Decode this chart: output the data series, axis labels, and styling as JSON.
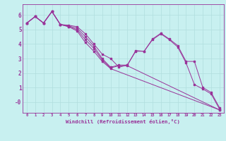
{
  "xlabel": "Windchill (Refroidissement éolien,°C)",
  "bg_color": "#c8f0f0",
  "line_color": "#993399",
  "grid_color": "#b0dede",
  "xlim": [
    -0.5,
    23.5
  ],
  "ylim": [
    -0.75,
    6.75
  ],
  "xticks": [
    0,
    1,
    2,
    3,
    4,
    5,
    6,
    7,
    8,
    9,
    10,
    11,
    12,
    13,
    14,
    15,
    16,
    17,
    18,
    19,
    20,
    21,
    22,
    23
  ],
  "yticks": [
    0,
    1,
    2,
    3,
    4,
    5,
    6
  ],
  "ytick_labels": [
    "-0",
    "1",
    "2",
    "3",
    "4",
    "5",
    "6"
  ],
  "lines": [
    {
      "x": [
        0,
        1,
        2,
        3,
        4,
        5,
        6,
        7,
        8,
        9,
        10,
        11,
        12,
        13,
        14,
        15,
        16,
        17,
        18,
        19,
        20,
        21,
        22,
        23
      ],
      "y": [
        5.45,
        5.9,
        5.45,
        6.25,
        5.35,
        5.3,
        5.2,
        4.7,
        4.0,
        3.3,
        3.0,
        2.4,
        2.55,
        3.55,
        3.5,
        4.35,
        4.75,
        4.35,
        3.9,
        2.8,
        2.8,
        1.0,
        0.65,
        -0.4
      ]
    },
    {
      "x": [
        0,
        1,
        2,
        3,
        4,
        5,
        6,
        7,
        8,
        9,
        10,
        11,
        12,
        13,
        14,
        15,
        16,
        17,
        18,
        19,
        20,
        21,
        22,
        23
      ],
      "y": [
        5.45,
        5.9,
        5.45,
        6.25,
        5.35,
        5.25,
        5.1,
        4.5,
        3.85,
        3.0,
        2.4,
        2.55,
        2.55,
        3.5,
        3.5,
        4.3,
        4.7,
        4.3,
        3.8,
        2.7,
        1.2,
        0.9,
        0.55,
        -0.5
      ]
    },
    {
      "x": [
        0,
        1,
        2,
        3,
        4,
        5,
        6,
        7,
        8,
        9,
        10,
        11,
        12,
        23
      ],
      "y": [
        5.45,
        5.9,
        5.45,
        6.25,
        5.35,
        5.2,
        5.0,
        4.3,
        3.7,
        2.9,
        2.35,
        2.5,
        2.5,
        -0.55
      ]
    },
    {
      "x": [
        0,
        1,
        2,
        3,
        4,
        5,
        6,
        7,
        8,
        9,
        10,
        23
      ],
      "y": [
        5.45,
        5.9,
        5.45,
        6.25,
        5.35,
        5.2,
        4.9,
        4.1,
        3.5,
        2.8,
        2.3,
        -0.55
      ]
    }
  ]
}
